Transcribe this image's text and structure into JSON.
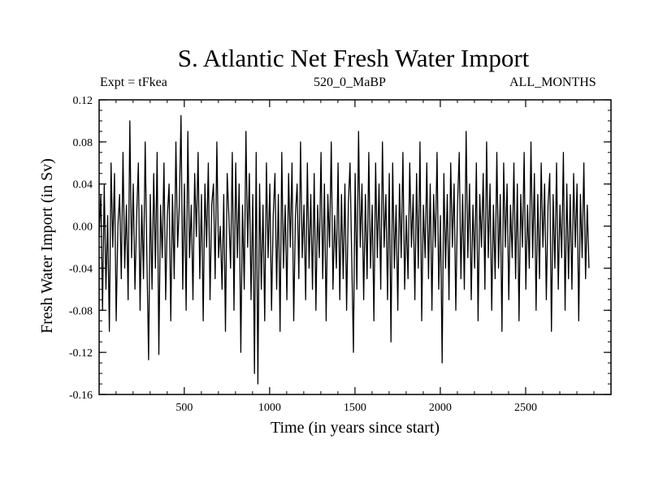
{
  "chart_data": {
    "type": "line",
    "title": "S. Atlantic Net Fresh Water Import",
    "subtitle_left": "Expt = tFkea",
    "subtitle_center": "520_0_MaBP",
    "subtitle_right": "ALL_MONTHS",
    "xlabel": "Time (in years since start)",
    "ylabel": "Fresh Water Import (in Sv)",
    "xlim": [
      1,
      3000
    ],
    "ylim": [
      -0.16,
      0.12
    ],
    "xticks": [
      500,
      1000,
      1500,
      2000,
      2500
    ],
    "yticks": [
      -0.16,
      -0.12,
      -0.08,
      -0.04,
      0.0,
      0.04,
      0.08,
      0.12
    ],
    "ytick_labels": [
      "-0.16",
      "-0.12",
      "-0.08",
      "-0.04",
      "0.00",
      "0.04",
      "0.08",
      "0.12"
    ],
    "grid": false,
    "line_color": "#000000",
    "series": [
      {
        "values_note_free": true,
        "x_start": 1,
        "x_step": 10,
        "values": [
          -0.01,
          0.03,
          -0.08,
          0.04,
          -0.06,
          0.01,
          -0.1,
          0.06,
          -0.02,
          0.05,
          -0.09,
          0.0,
          0.03,
          -0.05,
          0.07,
          -0.04,
          0.02,
          -0.07,
          0.1,
          -0.03,
          0.04,
          -0.06,
          0.01,
          0.06,
          -0.08,
          0.02,
          -0.05,
          0.08,
          -0.03,
          -0.127,
          0.03,
          -0.06,
          0.05,
          -0.04,
          0.07,
          -0.122,
          0.02,
          -0.03,
          0.06,
          -0.07,
          0.01,
          0.04,
          -0.09,
          0.03,
          -0.05,
          0.08,
          -0.02,
          0.02,
          0.105,
          -0.06,
          0.04,
          -0.08,
          0.09,
          -0.03,
          0.02,
          -0.07,
          0.05,
          -0.01,
          0.07,
          -0.05,
          0.03,
          -0.09,
          0.04,
          -0.02,
          0.06,
          -0.07,
          0.02,
          0.04,
          -0.05,
          0.08,
          -0.03,
          0.0,
          -0.06,
          0.03,
          -0.1,
          0.05,
          0.01,
          -0.04,
          0.07,
          -0.08,
          0.06,
          -0.03,
          0.04,
          -0.12,
          0.02,
          -0.06,
          0.09,
          -0.02,
          0.05,
          -0.07,
          0.03,
          -0.14,
          0.07,
          -0.15,
          0.04,
          -0.06,
          0.02,
          -0.09,
          0.06,
          -0.03,
          0.04,
          -0.08,
          0.01,
          0.05,
          -0.06,
          0.03,
          -0.1,
          0.07,
          -0.04,
          0.02,
          -0.07,
          0.05,
          -0.02,
          0.06,
          -0.09,
          0.01,
          0.04,
          -0.05,
          0.08,
          -0.03,
          0.02,
          -0.07,
          0.06,
          -0.04,
          0.03,
          -0.06,
          0.05,
          -0.08,
          0.02,
          -0.03,
          0.07,
          -0.05,
          0.04,
          -0.09,
          0.03,
          -0.02,
          0.08,
          -0.06,
          0.01,
          -0.04,
          0.06,
          -0.07,
          0.03,
          -0.05,
          0.04,
          -0.08,
          0.02,
          0.06,
          -0.03,
          -0.12,
          0.05,
          -0.06,
          0.09,
          -0.02,
          0.04,
          -0.07,
          0.03,
          -0.05,
          0.07,
          -0.04,
          0.02,
          -0.09,
          0.06,
          -0.03,
          0.04,
          -0.06,
          0.08,
          -0.02,
          0.03,
          -0.07,
          0.05,
          -0.11,
          0.06,
          -0.04,
          0.02,
          -0.08,
          0.04,
          -0.03,
          0.07,
          -0.06,
          0.01,
          -0.05,
          0.06,
          -0.02,
          0.03,
          -0.07,
          0.05,
          -0.04,
          0.08,
          -0.09,
          0.02,
          -0.03,
          0.06,
          -0.05,
          0.04,
          -0.08,
          0.03,
          -0.02,
          0.07,
          -0.06,
          0.01,
          -0.13,
          0.05,
          -0.04,
          0.03,
          -0.07,
          0.06,
          -0.02,
          0.04,
          -0.08,
          0.02,
          0.07,
          -0.05,
          0.03,
          -0.06,
          0.09,
          -0.03,
          0.04,
          -0.07,
          0.02,
          -0.04,
          0.06,
          -0.09,
          0.03,
          -0.02,
          0.05,
          -0.06,
          0.08,
          -0.03,
          0.04,
          -0.08,
          0.02,
          -0.05,
          0.07,
          -0.04,
          0.03,
          -0.1,
          0.06,
          -0.02,
          0.04,
          -0.07,
          0.02,
          -0.03,
          0.06,
          -0.05,
          0.04,
          -0.09,
          0.03,
          -0.02,
          0.07,
          -0.06,
          0.02,
          -0.04,
          0.08,
          -0.03,
          0.05,
          -0.08,
          0.03,
          -0.05,
          0.06,
          -0.02,
          0.04,
          -0.07,
          0.02,
          0.05,
          -0.1,
          0.03,
          -0.04,
          0.06,
          -0.06,
          0.02,
          -0.03,
          0.07,
          -0.08,
          0.04,
          -0.05,
          0.03,
          -0.06,
          0.05,
          -0.02,
          0.04,
          -0.09,
          0.03,
          -0.03,
          0.06,
          -0.05,
          0.02,
          -0.04
        ]
      }
    ]
  }
}
